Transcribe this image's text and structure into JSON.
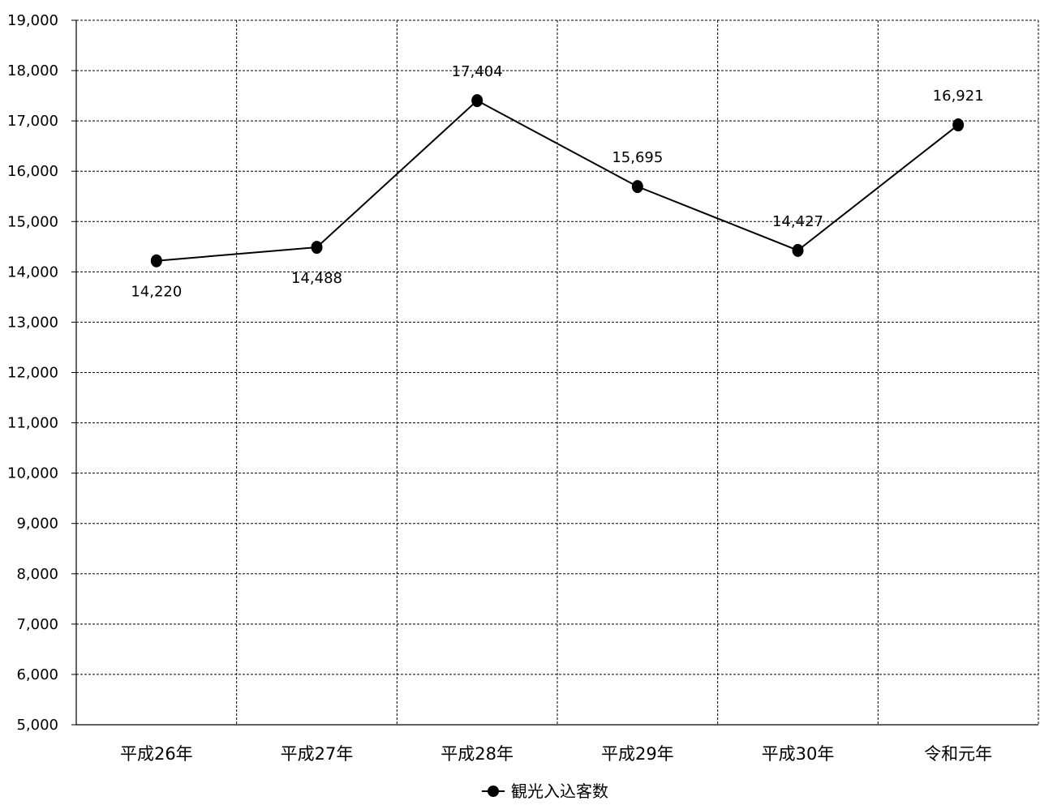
{
  "chart_data": {
    "type": "line",
    "categories": [
      "平成26年",
      "平成27年",
      "平成28年",
      "平成29年",
      "平成30年",
      "令和元年"
    ],
    "series": [
      {
        "name": "観光入込客数",
        "values": [
          14220,
          14488,
          17404,
          15695,
          14427,
          16921
        ],
        "value_labels": [
          "14,220",
          "14,488",
          "17,404",
          "15,695",
          "14,427",
          "16,921"
        ],
        "label_positions": [
          "below",
          "below",
          "above",
          "above",
          "above",
          "above"
        ],
        "color": "#000000"
      }
    ],
    "ylim": [
      5000,
      19000
    ],
    "yticks": [
      5000,
      6000,
      7000,
      8000,
      9000,
      10000,
      11000,
      12000,
      13000,
      14000,
      15000,
      16000,
      17000,
      18000,
      19000
    ],
    "ytick_labels": [
      "5,000",
      "6,000",
      "7,000",
      "8,000",
      "9,000",
      "10,000",
      "11,000",
      "12,000",
      "13,000",
      "14,000",
      "15,000",
      "16,000",
      "17,000",
      "18,000",
      "19,000"
    ],
    "title": "",
    "xlabel": "",
    "ylabel": "",
    "grid": true,
    "grid_style": "dashed",
    "legend_position": "bottom-center"
  }
}
